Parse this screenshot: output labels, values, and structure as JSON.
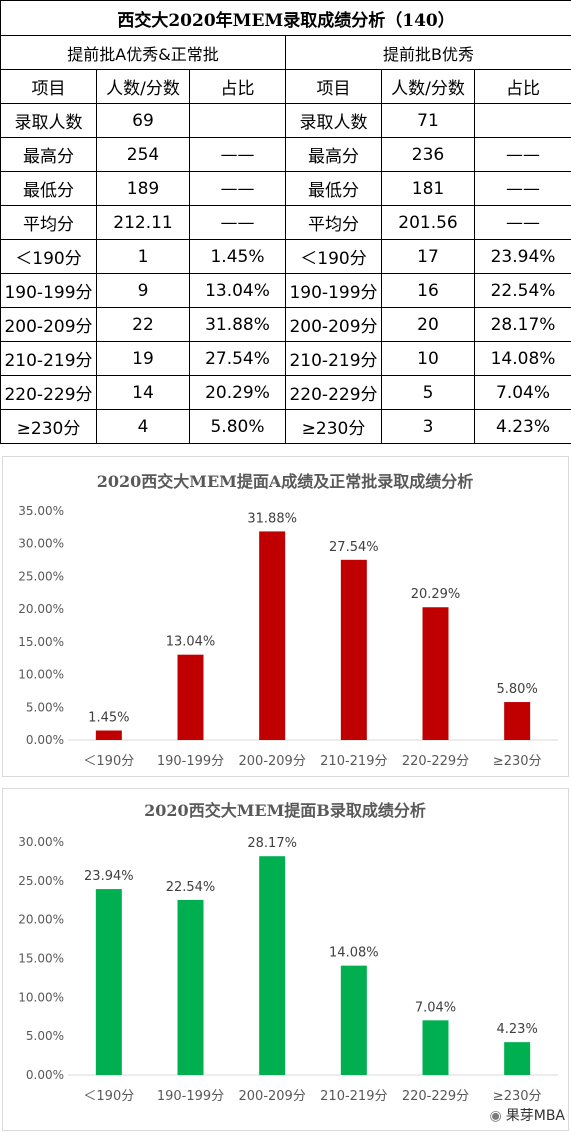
{
  "table": {
    "title": "西交大2020年MEM录取成绩分析（140）",
    "section_a": "提前批A优秀&正常批",
    "section_b": "提前批B优秀",
    "headers": [
      "项目",
      "人数/分数",
      "占比",
      "项目",
      "人数/分数",
      "占比"
    ],
    "rows": [
      [
        "录取人数",
        "69",
        "",
        "录取人数",
        "71",
        ""
      ],
      [
        "最高分",
        "254",
        "——",
        "最高分",
        "236",
        "——"
      ],
      [
        "最低分",
        "189",
        "——",
        "最低分",
        "181",
        "——"
      ],
      [
        "平均分",
        "212.11",
        "——",
        "平均分",
        "201.56",
        "——"
      ],
      [
        "＜190分",
        "1",
        "1.45%",
        "＜190分",
        "17",
        "23.94%"
      ],
      [
        "190-199分",
        "9",
        "13.04%",
        "190-199分",
        "16",
        "22.54%"
      ],
      [
        "200-209分",
        "22",
        "31.88%",
        "200-209分",
        "20",
        "28.17%"
      ],
      [
        "210-219分",
        "19",
        "27.54%",
        "210-219分",
        "10",
        "14.08%"
      ],
      [
        "220-229分",
        "14",
        "20.29%",
        "220-229分",
        "5",
        "7.04%"
      ],
      [
        "≥230分",
        "4",
        "5.80%",
        "≥230分",
        "3",
        "4.23%"
      ]
    ]
  },
  "chart_data": [
    {
      "type": "bar",
      "title": "2020西交大MEM提面A成绩及正常批录取成绩分析",
      "xlabel": "",
      "ylabel": "",
      "categories": [
        "＜190分",
        "190-199分",
        "200-209分",
        "210-219分",
        "220-229分",
        "≥230分"
      ],
      "values": [
        1.45,
        13.04,
        31.88,
        27.54,
        20.29,
        5.8
      ],
      "data_labels": [
        "1.45%",
        "13.04%",
        "31.88%",
        "27.54%",
        "20.29%",
        "5.80%"
      ],
      "ylim": [
        0,
        35
      ],
      "yticks": [
        0,
        5,
        10,
        15,
        20,
        25,
        30,
        35
      ],
      "ytick_labels": [
        "0.00%",
        "5.00%",
        "10.00%",
        "15.00%",
        "20.00%",
        "25.00%",
        "30.00%",
        "35.00%"
      ],
      "color": "#c00000",
      "grid": false
    },
    {
      "type": "bar",
      "title": "2020西交大MEM提面B录取成绩分析",
      "xlabel": "",
      "ylabel": "",
      "categories": [
        "＜190分",
        "190-199分",
        "200-209分",
        "210-219分",
        "220-229分",
        "≥230分"
      ],
      "values": [
        23.94,
        22.54,
        28.17,
        14.08,
        7.04,
        4.23
      ],
      "data_labels": [
        "23.94%",
        "22.54%",
        "28.17%",
        "14.08%",
        "7.04%",
        "4.23%"
      ],
      "ylim": [
        0,
        30
      ],
      "yticks": [
        0,
        5,
        10,
        15,
        20,
        25,
        30
      ],
      "ytick_labels": [
        "0.00%",
        "5.00%",
        "10.00%",
        "15.00%",
        "20.00%",
        "25.00%",
        "30.00%"
      ],
      "color": "#00b050",
      "grid": false
    }
  ],
  "watermark": {
    "text": "果芽MBA",
    "icon": "wechat-icon"
  }
}
